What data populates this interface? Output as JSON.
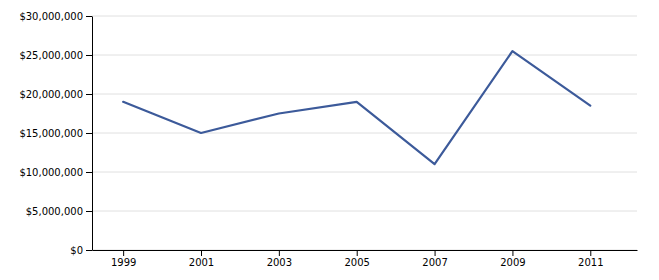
{
  "chart_data": {
    "type": "line",
    "x": [
      1999,
      2001,
      2003,
      2005,
      2007,
      2009,
      2011
    ],
    "values": [
      19000000,
      15000000,
      17500000,
      19000000,
      11000000,
      25500000,
      18500000
    ],
    "color": "#3C5A9A",
    "xlim": [
      1998.2,
      2012.2
    ],
    "xticks": [
      1999,
      2001,
      2003,
      2005,
      2007,
      2009,
      2011
    ],
    "ylim": [
      0,
      30000000
    ],
    "yticks": [
      {
        "value": 0,
        "label": "$0"
      },
      {
        "value": 5000000,
        "label": "$5,000,000"
      },
      {
        "value": 10000000,
        "label": "$10,000,000"
      },
      {
        "value": 15000000,
        "label": "$15,000,000"
      },
      {
        "value": 20000000,
        "label": "$20,000,000"
      },
      {
        "value": 25000000,
        "label": "$25,000,000"
      },
      {
        "value": 30000000,
        "label": "$30,000,000"
      }
    ],
    "grid": true
  }
}
